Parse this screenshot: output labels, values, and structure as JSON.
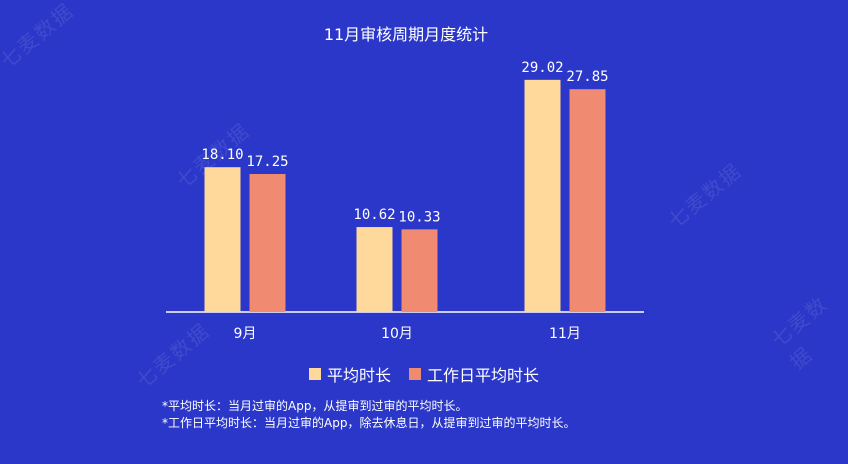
{
  "watermark": "七麦数据",
  "colors": {
    "background": "#2a37c8",
    "series1": "#ffd89b",
    "series2": "#f08a70",
    "axis": "#ffffff"
  },
  "chart_data": {
    "type": "bar",
    "title": "11月审核周期月度统计",
    "categories": [
      "9月",
      "10月",
      "11月"
    ],
    "series": [
      {
        "name": "平均时长",
        "values": [
          18.1,
          10.62,
          29.02
        ],
        "labels": [
          "18.10",
          "10.62",
          "29.02"
        ]
      },
      {
        "name": "工作日平均时长",
        "values": [
          17.25,
          10.33,
          27.85
        ],
        "labels": [
          "17.25",
          "10.33",
          "27.85"
        ]
      }
    ],
    "ylim": [
      0,
      30
    ],
    "grid": false,
    "legend_position": "bottom"
  },
  "footnotes": [
    "*平均时长：当月过审的App，从提审到过审的平均时长。",
    "*工作日平均时长：当月过审的App，除去休息日，从提审到过审的平均时长。"
  ]
}
